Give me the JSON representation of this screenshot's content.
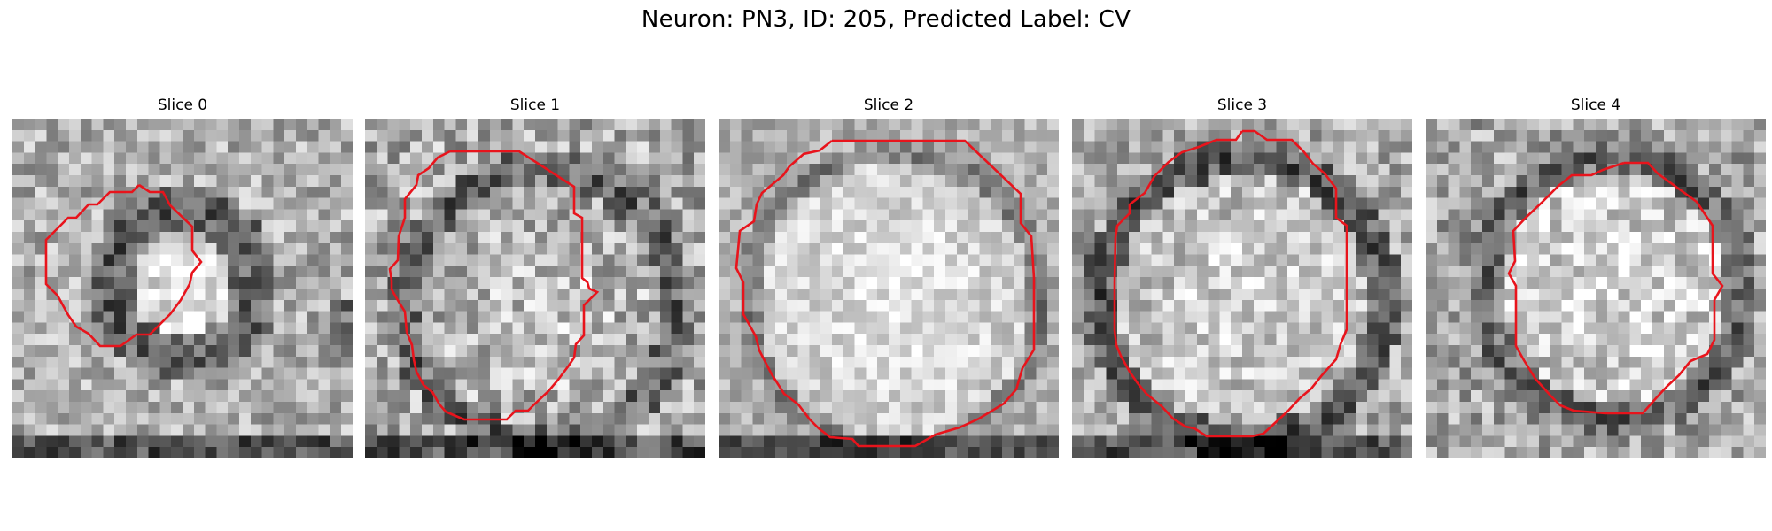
{
  "title": "Neuron: PN3, ID: 205, Predicted Label: CV",
  "colors": {
    "contour": "#e8141c",
    "background": "#ffffff"
  },
  "slices": [
    {
      "label": "Slice 0"
    },
    {
      "label": "Slice 1"
    },
    {
      "label": "Slice 2"
    },
    {
      "label": "Slice 3"
    },
    {
      "label": "Slice 4"
    }
  ]
}
